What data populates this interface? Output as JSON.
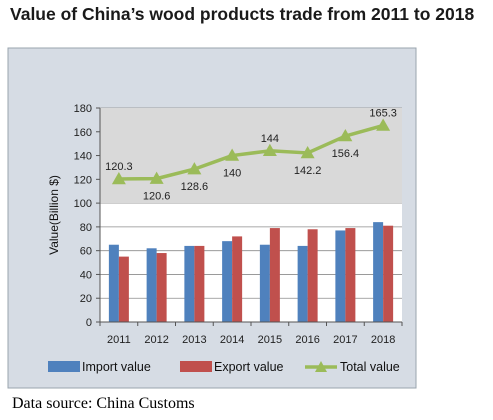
{
  "title": "Value of China’s wood products trade from 2011 to 2018",
  "source": "Data source: China Customs",
  "chart_data": {
    "type": "bar",
    "categories": [
      "2011",
      "2012",
      "2013",
      "2014",
      "2015",
      "2016",
      "2017",
      "2018"
    ],
    "series": [
      {
        "name": "Import value",
        "type": "bar",
        "color": "#4f81bd",
        "values": [
          65,
          62,
          64,
          68,
          65,
          64,
          77,
          84
        ]
      },
      {
        "name": "Export value",
        "type": "bar",
        "color": "#c0504d",
        "values": [
          55,
          58,
          64,
          72,
          79,
          78,
          79,
          81
        ]
      },
      {
        "name": "Total value",
        "type": "line",
        "color": "#9bbb59",
        "values": [
          120.3,
          120.6,
          128.6,
          140,
          144,
          142.2,
          156.4,
          165.3
        ],
        "labels": [
          "120.3",
          "120.6",
          "128.6",
          "140",
          "144",
          "142.2",
          "156.4",
          "165.3"
        ]
      }
    ],
    "xlabel": "",
    "ylabel": "Value(Billion $)",
    "ylim": [
      0,
      180
    ],
    "yticks": [
      0,
      20,
      40,
      60,
      80,
      100,
      120,
      140,
      160,
      180
    ],
    "grid": true,
    "legend_position": "bottom"
  }
}
